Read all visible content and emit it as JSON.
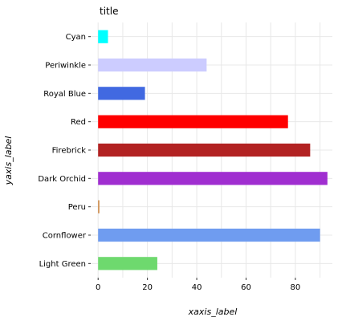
{
  "chart_data": {
    "type": "bar",
    "orientation": "horizontal",
    "title": "title",
    "xlabel": "xaxis_label",
    "ylabel": "yaxis_label",
    "categories": [
      "Light Green",
      "Cornflower",
      "Peru",
      "Dark Orchid",
      "Firebrick",
      "Red",
      "Royal Blue",
      "Periwinkle",
      "Cyan"
    ],
    "values": [
      24,
      90,
      0.5,
      93,
      86,
      77,
      19,
      44,
      4
    ],
    "colors": [
      "#6ed96e",
      "#6f9cf0",
      "#cd853f",
      "#a02ed0",
      "#b22222",
      "#ff0000",
      "#4169e1",
      "#ccccff",
      "#00ffff"
    ],
    "xlim": [
      -3,
      95
    ],
    "xticks": [
      0,
      20,
      40,
      60,
      80
    ],
    "grid": true,
    "legend": "none"
  }
}
